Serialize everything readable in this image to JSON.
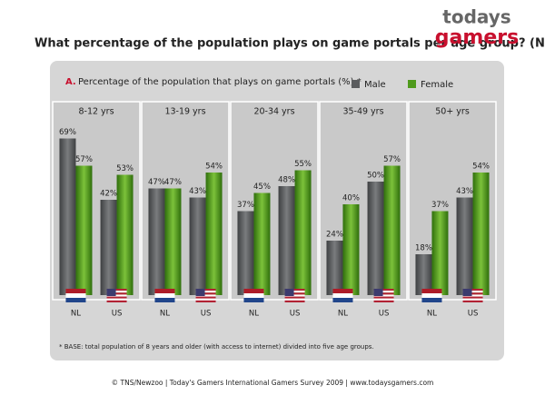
{
  "logo": {
    "line1": "todays",
    "line2": "gamers"
  },
  "chart_data": {
    "type": "grouped-bar",
    "title": "What percentage of the population plays on game portals per age group? (NL-US)",
    "subtitle_marker": "A.",
    "subtitle": "Percentage of the population that plays on game portals (%) *",
    "groups": [
      "8-12 yrs",
      "13-19 yrs",
      "20-34 yrs",
      "35-49 yrs",
      "50+ yrs"
    ],
    "categories": [
      "NL",
      "US",
      "NL",
      "US",
      "NL",
      "US",
      "NL",
      "US",
      "NL",
      "US"
    ],
    "series": [
      {
        "name": "Male",
        "color": "#5a5c5e",
        "values": [
          69,
          42,
          47,
          43,
          37,
          48,
          24,
          50,
          18,
          43
        ],
        "value_labels": [
          "69%",
          "42%",
          "47%",
          "43%",
          "37%",
          "48%",
          "24%",
          "50%",
          "18%",
          "43%"
        ]
      },
      {
        "name": "Female",
        "color": "#4f9a1c",
        "values": [
          57,
          53,
          47,
          54,
          45,
          55,
          40,
          57,
          37,
          54
        ],
        "value_labels": [
          "57%",
          "53%",
          "47%",
          "54%",
          "45%",
          "55%",
          "40%",
          "57%",
          "37%",
          "54%"
        ]
      }
    ],
    "footnote": "* BASE: total population of 8 years and older (with access to internet) divided into five age groups.",
    "source": "© TNS/Newzoo | Today's Gamers International Gamers Survey 2009 | www.todaysgamers.com"
  }
}
